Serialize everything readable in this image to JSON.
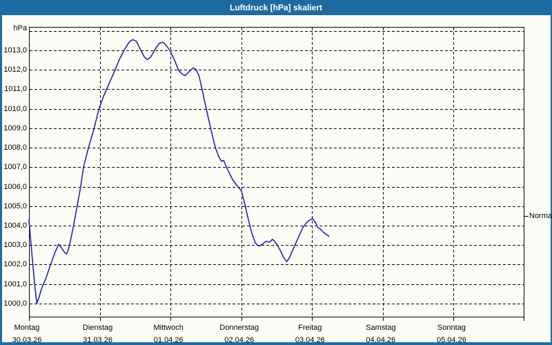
{
  "window": {
    "title": "Luftdruck [hPa] skaliert"
  },
  "colors": {
    "frame": "#1d6da4",
    "titlebar": "#1d6da4",
    "title_text": "#ffffff",
    "content_background": "#fcfdf6",
    "grid": "#000000",
    "axis_text": "#000000",
    "line": "#2222b2"
  },
  "y_axis": {
    "unit_label": "hPa",
    "ticks": [
      {
        "value": 1013,
        "label": "1013,0"
      },
      {
        "value": 1012,
        "label": "1012,0"
      },
      {
        "value": 1011,
        "label": "1011,0"
      },
      {
        "value": 1010,
        "label": "1010,0"
      },
      {
        "value": 1009,
        "label": "1009,0"
      },
      {
        "value": 1008,
        "label": "1008,0"
      },
      {
        "value": 1007,
        "label": "1007,0"
      },
      {
        "value": 1006,
        "label": "1006,0"
      },
      {
        "value": 1005,
        "label": "1005,0"
      },
      {
        "value": 1004,
        "label": "1004,0"
      },
      {
        "value": 1003,
        "label": "1003,0"
      },
      {
        "value": 1002,
        "label": "1002,0"
      },
      {
        "value": 1001,
        "label": "1001,0"
      },
      {
        "value": 1000,
        "label": "1000,0"
      }
    ]
  },
  "x_axis": {
    "ticks": [
      {
        "day": 0,
        "name": "Montag",
        "date": "30.03.26"
      },
      {
        "day": 1,
        "name": "Dienstag",
        "date": "31.03.26"
      },
      {
        "day": 2,
        "name": "Mittwoch",
        "date": "01.04.26"
      },
      {
        "day": 3,
        "name": "Donnerstag",
        "date": "02.04.26"
      },
      {
        "day": 4,
        "name": "Freitag",
        "date": "03.04.26"
      },
      {
        "day": 5,
        "name": "Samstag",
        "date": "04.04.26"
      },
      {
        "day": 6,
        "name": "Sonntag",
        "date": "05.04.26"
      }
    ]
  },
  "normal_marker": {
    "label": "Normal",
    "value": 1004.5
  },
  "chart_data": {
    "type": "line",
    "title": "Luftdruck [hPa] skaliert",
    "xlabel": "",
    "ylabel": "hPa",
    "ylim": [
      999.29,
      1014.2
    ],
    "xlim_days": [
      0,
      7
    ],
    "grid": true,
    "y_gridline_values": [
      1000,
      1001,
      1002,
      1003,
      1004,
      1005,
      1006,
      1007,
      1008,
      1009,
      1010,
      1011,
      1012,
      1013,
      1014
    ],
    "x_unit": "days since Montag 30.03.26 00:00",
    "normal_value": 1004.5,
    "series": [
      {
        "name": "Luftdruck",
        "color": "#2222b2",
        "points": [
          [
            0.0,
            1004.3
          ],
          [
            0.02,
            1003.4
          ],
          [
            0.05,
            1002.2
          ],
          [
            0.08,
            1001.0
          ],
          [
            0.11,
            1000.0
          ],
          [
            0.14,
            1000.3
          ],
          [
            0.18,
            1000.8
          ],
          [
            0.24,
            1001.3
          ],
          [
            0.3,
            1001.95
          ],
          [
            0.37,
            1002.65
          ],
          [
            0.42,
            1003.05
          ],
          [
            0.47,
            1002.8
          ],
          [
            0.51,
            1002.6
          ],
          [
            0.53,
            1002.55
          ],
          [
            0.56,
            1002.8
          ],
          [
            0.59,
            1003.3
          ],
          [
            0.63,
            1004.0
          ],
          [
            0.66,
            1004.6
          ],
          [
            0.69,
            1005.2
          ],
          [
            0.73,
            1006.0
          ],
          [
            0.77,
            1007.0
          ],
          [
            0.84,
            1008.0
          ],
          [
            0.92,
            1009.0
          ],
          [
            0.99,
            1010.0
          ],
          [
            1.05,
            1010.6
          ],
          [
            1.12,
            1011.2
          ],
          [
            1.2,
            1011.85
          ],
          [
            1.28,
            1012.55
          ],
          [
            1.35,
            1013.05
          ],
          [
            1.42,
            1013.45
          ],
          [
            1.47,
            1013.55
          ],
          [
            1.52,
            1013.45
          ],
          [
            1.58,
            1013.0
          ],
          [
            1.63,
            1012.65
          ],
          [
            1.67,
            1012.52
          ],
          [
            1.72,
            1012.65
          ],
          [
            1.78,
            1013.05
          ],
          [
            1.84,
            1013.35
          ],
          [
            1.89,
            1013.42
          ],
          [
            1.94,
            1013.25
          ],
          [
            1.99,
            1013.0
          ],
          [
            2.05,
            1012.55
          ],
          [
            2.11,
            1012.0
          ],
          [
            2.16,
            1011.78
          ],
          [
            2.21,
            1011.7
          ],
          [
            2.26,
            1011.9
          ],
          [
            2.32,
            1012.1
          ],
          [
            2.36,
            1012.02
          ],
          [
            2.4,
            1011.72
          ],
          [
            2.44,
            1011.1
          ],
          [
            2.48,
            1010.4
          ],
          [
            2.53,
            1009.6
          ],
          [
            2.58,
            1008.8
          ],
          [
            2.63,
            1008.05
          ],
          [
            2.68,
            1007.55
          ],
          [
            2.72,
            1007.3
          ],
          [
            2.75,
            1007.35
          ],
          [
            2.78,
            1007.1
          ],
          [
            2.83,
            1006.7
          ],
          [
            2.88,
            1006.35
          ],
          [
            2.94,
            1006.05
          ],
          [
            3.0,
            1005.8
          ],
          [
            3.05,
            1005.1
          ],
          [
            3.1,
            1004.3
          ],
          [
            3.15,
            1003.6
          ],
          [
            3.2,
            1003.1
          ],
          [
            3.25,
            1002.95
          ],
          [
            3.3,
            1003.05
          ],
          [
            3.35,
            1003.2
          ],
          [
            3.4,
            1003.15
          ],
          [
            3.44,
            1003.3
          ],
          [
            3.47,
            1003.2
          ],
          [
            3.51,
            1003.0
          ],
          [
            3.56,
            1002.65
          ],
          [
            3.6,
            1002.35
          ],
          [
            3.64,
            1002.15
          ],
          [
            3.68,
            1002.35
          ],
          [
            3.72,
            1002.7
          ],
          [
            3.77,
            1003.1
          ],
          [
            3.82,
            1003.5
          ],
          [
            3.87,
            1003.9
          ],
          [
            3.92,
            1004.15
          ],
          [
            3.97,
            1004.3
          ],
          [
            4.01,
            1004.35
          ],
          [
            4.05,
            1004.15
          ],
          [
            4.08,
            1003.9
          ],
          [
            4.12,
            1003.82
          ],
          [
            4.16,
            1003.65
          ],
          [
            4.2,
            1003.55
          ],
          [
            4.24,
            1003.45
          ]
        ]
      }
    ]
  }
}
